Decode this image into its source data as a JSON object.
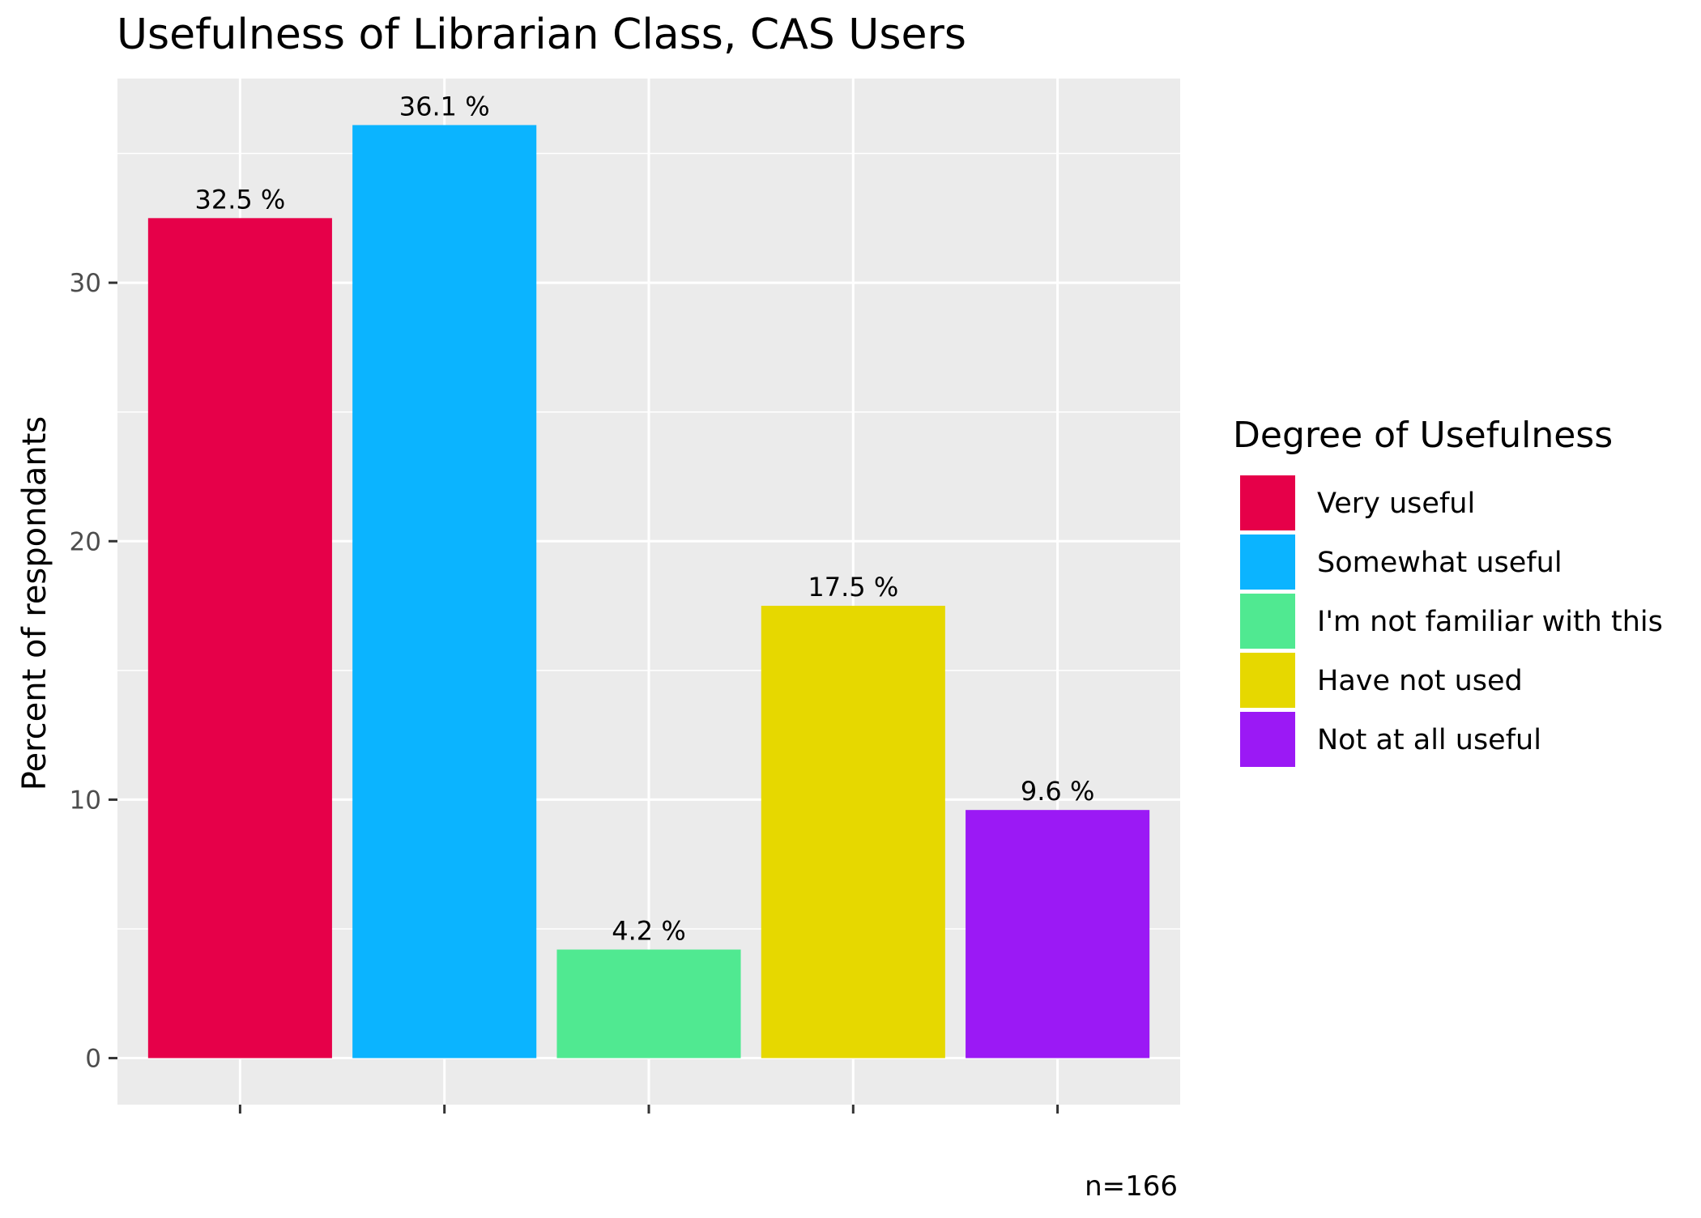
{
  "chart_data": {
    "type": "bar",
    "title": "Usefulness of Librarian Class,  CAS Users",
    "xlabel": "",
    "ylabel": "Percent of respondants",
    "categories": [
      "Very useful",
      "Somewhat useful",
      "I'm not familiar with this",
      "Have not used",
      "Not at all useful"
    ],
    "values": [
      32.5,
      36.1,
      4.2,
      17.5,
      9.6
    ],
    "value_labels": [
      "32.5 %",
      "36.1 %",
      "4.2 %",
      "17.5 %",
      "9.6 %"
    ],
    "colors": [
      "#e60049",
      "#0bb4ff",
      "#50e991",
      "#e6d800",
      "#9b19f5"
    ],
    "ylim": [
      -1.8,
      37.9
    ],
    "yticks": [
      0,
      10,
      20,
      30
    ],
    "ytick_labels": [
      "0",
      "10",
      "20",
      "30"
    ],
    "grid": true,
    "panel_background": "#ebebeb",
    "legend": {
      "title": "Degree of Usefulness",
      "placement": "right",
      "entries": [
        "Very useful",
        "Somewhat useful",
        "I'm not familiar with this",
        "Have not used",
        "Not at all useful"
      ]
    },
    "caption": "n=166"
  }
}
